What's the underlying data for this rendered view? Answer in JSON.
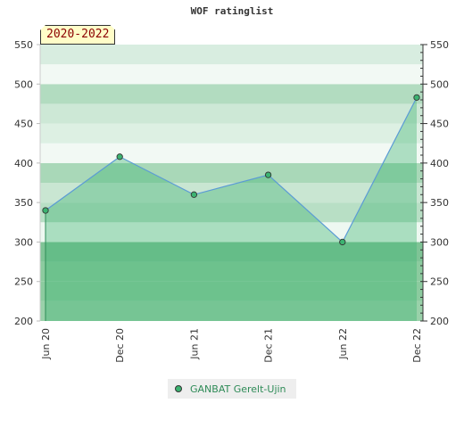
{
  "chart_data": {
    "type": "area",
    "title": "WOF ratinglist",
    "period_label": "2020-2022",
    "x": [
      "Jun 20",
      "Dec 20",
      "Jun 21",
      "Dec 21",
      "Jun 22",
      "Dec 22"
    ],
    "series": [
      {
        "name": "GANBAT Gerelt-Ujin",
        "values": [
          340,
          408,
          360,
          385,
          300,
          483
        ]
      }
    ],
    "xlabel": "",
    "ylabel": "",
    "ylim": [
      200,
      550
    ],
    "y_ticks": [
      200,
      250,
      300,
      350,
      400,
      450,
      500,
      550
    ],
    "grid": true,
    "legend_position": "bottom",
    "colors": {
      "area_fill": "#3cb371",
      "line": "#5b9bd5",
      "marker": "#3cb371",
      "band_dark": "#7fc496",
      "band_light": "#f2f9f4"
    }
  }
}
